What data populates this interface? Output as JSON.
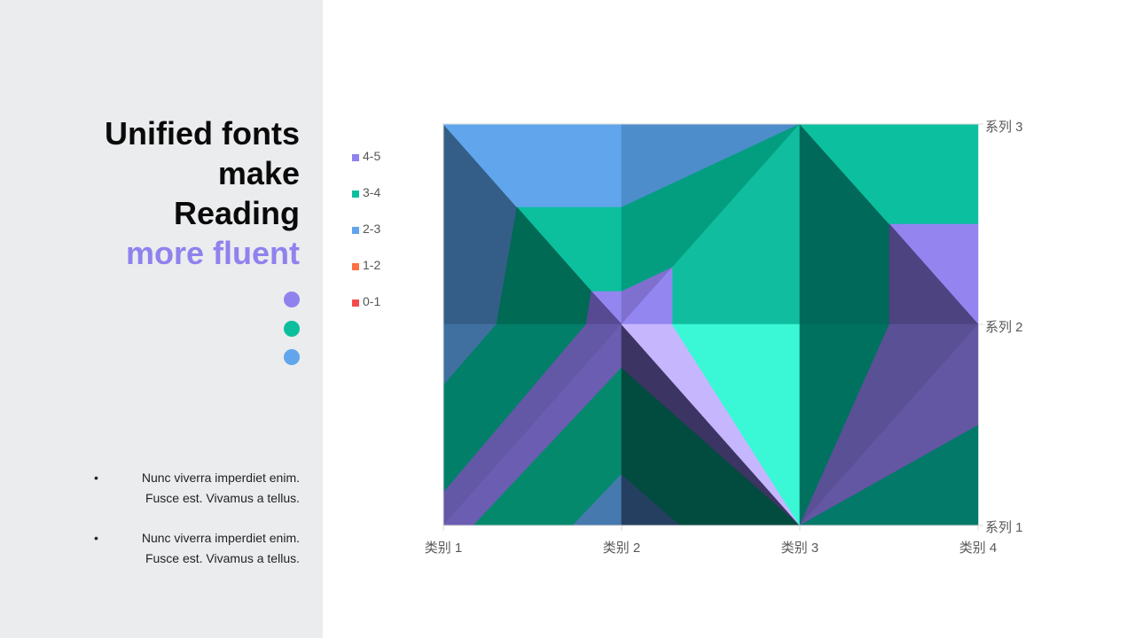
{
  "title": {
    "line1": "Unified fonts",
    "line2": "make",
    "line3": "Reading",
    "line4": "more fluent"
  },
  "dots": [
    "#8f82ee",
    "#0bbf9d",
    "#61a5ec"
  ],
  "bullets": [
    {
      "line1": "Nunc viverra imperdiet enim.",
      "line2": "Fusce est. Vivamus a tellus."
    },
    {
      "line1": "Nunc viverra imperdiet enim.",
      "line2": "Fusce est. Vivamus a tellus."
    }
  ],
  "chart_data": {
    "type": "surface-contour",
    "categories": [
      "类别 1",
      "类别 2",
      "类别 3",
      "类别 4"
    ],
    "series": [
      {
        "name": "系列 1",
        "values": [
          4.3,
          2.5,
          3.5,
          4.5
        ]
      },
      {
        "name": "系列 2",
        "values": [
          2.4,
          4.4,
          1.8,
          2.8
        ]
      },
      {
        "name": "系列 3",
        "values": [
          2,
          2,
          3,
          5
        ]
      }
    ],
    "legend": [
      {
        "label": "4-5",
        "color": "#8f82ee"
      },
      {
        "label": "3-4",
        "color": "#0bbf9d"
      },
      {
        "label": "2-3",
        "color": "#61a5ec"
      },
      {
        "label": "1-2",
        "color": "#ff7043"
      },
      {
        "label": "0-1",
        "color": "#f44b4b"
      }
    ],
    "legend_position": "left",
    "zlim": [
      0,
      5
    ]
  }
}
